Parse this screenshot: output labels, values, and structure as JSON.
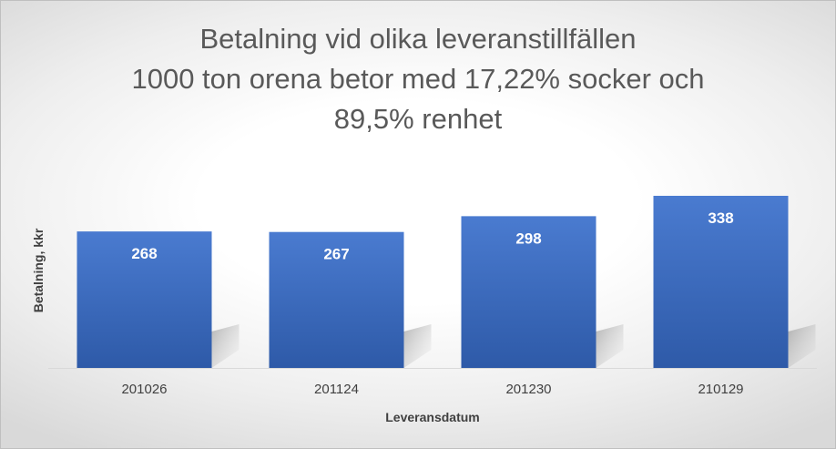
{
  "chart_data": {
    "type": "bar",
    "title_lines": [
      "Betalning vid olika leveranstillfällen",
      "1000 ton orena betor med 17,22% socker och",
      "89,5% renhet"
    ],
    "categories": [
      "201026",
      "201124",
      "201230",
      "210129"
    ],
    "values": [
      268,
      267,
      298,
      338
    ],
    "xlabel": "Leveransdatum",
    "ylabel": "Betalning, kkr",
    "ylim": [
      0,
      338
    ],
    "grid": false,
    "legend": "none",
    "colors": {
      "bar_top": "#4a7bd0",
      "bar_bottom": "#2e5aa8",
      "title": "#595959",
      "axis_text": "#404040"
    }
  }
}
